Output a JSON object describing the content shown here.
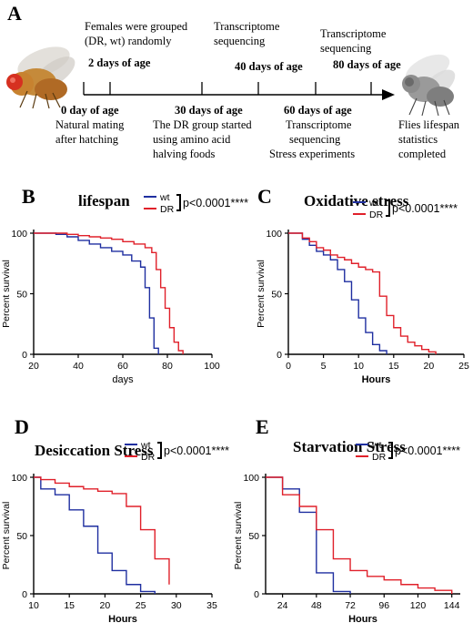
{
  "panels": {
    "A": "A",
    "B": "B",
    "C": "C",
    "D": "D",
    "E": "E"
  },
  "timeline": {
    "above": {
      "females_grouped": [
        "Females were grouped",
        "(DR, wt) randomly"
      ],
      "day2": "2 days of age",
      "seq1": [
        "Transcriptome",
        "sequencing"
      ],
      "day40": "40 days of age",
      "seq2": [
        "Transcriptome",
        "sequencing"
      ],
      "day80": "80 days of age"
    },
    "below": {
      "day0": "0 day of age",
      "mating": [
        "Natural mating",
        "after hatching"
      ],
      "day30": "30 days of age",
      "dr_group": [
        "The DR group started",
        "using amino acid",
        "halving foods"
      ],
      "day60": "60 days of age",
      "seq3": [
        "Transcriptome",
        "sequencing",
        "Stress experiments"
      ],
      "final": [
        "Flies lifespan",
        "statistics",
        "completed"
      ]
    }
  },
  "colors": {
    "wt": "#1f2fa0",
    "DR": "#e0202a",
    "axis": "#000000"
  },
  "chart_data": [
    {
      "panel": "B",
      "type": "line",
      "step": true,
      "title": "lifespan",
      "xlabel": "days",
      "ylabel": "Percent survival",
      "xlim": [
        20,
        100
      ],
      "ylim": [
        0,
        100
      ],
      "xticks": [
        20,
        40,
        60,
        80,
        100
      ],
      "yticks": [
        0,
        50,
        100
      ],
      "xtick_labels": [
        "20",
        "40",
        "60",
        "80",
        "100"
      ],
      "ytick_labels": [
        "0",
        "50",
        "100"
      ],
      "stat": "p<0.0001****",
      "series": [
        {
          "name": "wt",
          "color": "#1f2fa0",
          "x": [
            20,
            30,
            35,
            40,
            45,
            50,
            55,
            60,
            64,
            68,
            70,
            72,
            74,
            76
          ],
          "y": [
            100,
            99,
            97,
            94,
            91,
            88,
            85,
            82,
            77,
            72,
            55,
            30,
            5,
            0
          ]
        },
        {
          "name": "DR",
          "color": "#e0202a",
          "x": [
            20,
            35,
            40,
            45,
            50,
            55,
            60,
            65,
            70,
            73,
            75,
            77,
            79,
            81,
            83,
            85,
            87
          ],
          "y": [
            100,
            99,
            98,
            97,
            96,
            95,
            93,
            91,
            88,
            84,
            70,
            55,
            38,
            22,
            10,
            3,
            0
          ]
        }
      ]
    },
    {
      "panel": "C",
      "type": "line",
      "step": true,
      "title": "Oxidative stress",
      "xlabel": "Hours",
      "ylabel": "Percent survival",
      "xlim": [
        0,
        25
      ],
      "ylim": [
        0,
        100
      ],
      "xticks": [
        0,
        5,
        10,
        15,
        20,
        25
      ],
      "yticks": [
        0,
        50,
        100
      ],
      "xtick_labels": [
        "0",
        "5",
        "10",
        "15",
        "20",
        "25"
      ],
      "ytick_labels": [
        "0",
        "50",
        "100"
      ],
      "stat": "p<0.0001****",
      "series": [
        {
          "name": "wt",
          "color": "#1f2fa0",
          "x": [
            0,
            2,
            3,
            4,
            5,
            6,
            7,
            8,
            9,
            10,
            11,
            12,
            13,
            14
          ],
          "y": [
            100,
            95,
            90,
            85,
            82,
            78,
            70,
            60,
            45,
            30,
            18,
            8,
            3,
            0
          ]
        },
        {
          "name": "DR",
          "color": "#e0202a",
          "x": [
            0,
            2,
            3,
            4,
            5,
            6,
            7,
            8,
            9,
            10,
            11,
            12,
            13,
            14,
            15,
            16,
            17,
            18,
            19,
            20,
            21
          ],
          "y": [
            100,
            96,
            93,
            88,
            86,
            82,
            80,
            78,
            75,
            72,
            70,
            68,
            48,
            32,
            22,
            15,
            10,
            7,
            4,
            2,
            0
          ]
        }
      ]
    },
    {
      "panel": "D",
      "type": "line",
      "step": true,
      "title": "Desiccation Stress",
      "xlabel": "Hours",
      "ylabel": "Percent survival",
      "xlim": [
        10,
        35
      ],
      "ylim": [
        0,
        100
      ],
      "xticks": [
        10,
        15,
        20,
        25,
        30,
        35
      ],
      "yticks": [
        0,
        50,
        100
      ],
      "xtick_labels": [
        "10",
        "15",
        "20",
        "25",
        "30",
        "35"
      ],
      "ytick_labels": [
        "0",
        "50",
        "100"
      ],
      "stat": "p<0.0001****",
      "series": [
        {
          "name": "wt",
          "color": "#1f2fa0",
          "x": [
            10,
            11,
            13,
            15,
            17,
            19,
            21,
            23,
            25,
            27
          ],
          "y": [
            100,
            90,
            85,
            72,
            58,
            35,
            20,
            8,
            2,
            0
          ]
        },
        {
          "name": "DR",
          "color": "#e0202a",
          "x": [
            10,
            11,
            13,
            15,
            17,
            19,
            21,
            23,
            25,
            27,
            29
          ],
          "y": [
            100,
            98,
            95,
            92,
            90,
            88,
            86,
            75,
            55,
            30,
            8
          ]
        }
      ]
    },
    {
      "panel": "E",
      "type": "line",
      "step": true,
      "title": "Starvation Stress",
      "xlabel": "Hours",
      "ylabel": "Percent survival",
      "xlim": [
        12,
        150
      ],
      "ylim": [
        0,
        100
      ],
      "xticks": [
        24,
        48,
        72,
        96,
        120,
        144
      ],
      "yticks": [
        0,
        50,
        100
      ],
      "xtick_labels": [
        "24",
        "48",
        "72",
        "96",
        "120",
        "144"
      ],
      "ytick_labels": [
        "0",
        "50",
        "100"
      ],
      "stat": "p<0.0001****",
      "series": [
        {
          "name": "wt",
          "color": "#1f2fa0",
          "x": [
            12,
            24,
            36,
            48,
            60,
            72
          ],
          "y": [
            100,
            90,
            70,
            18,
            2,
            0
          ]
        },
        {
          "name": "DR",
          "color": "#e0202a",
          "x": [
            12,
            24,
            36,
            48,
            60,
            72,
            84,
            96,
            108,
            120,
            132,
            144
          ],
          "y": [
            100,
            85,
            75,
            55,
            30,
            20,
            15,
            12,
            8,
            5,
            3,
            0
          ]
        }
      ]
    }
  ]
}
